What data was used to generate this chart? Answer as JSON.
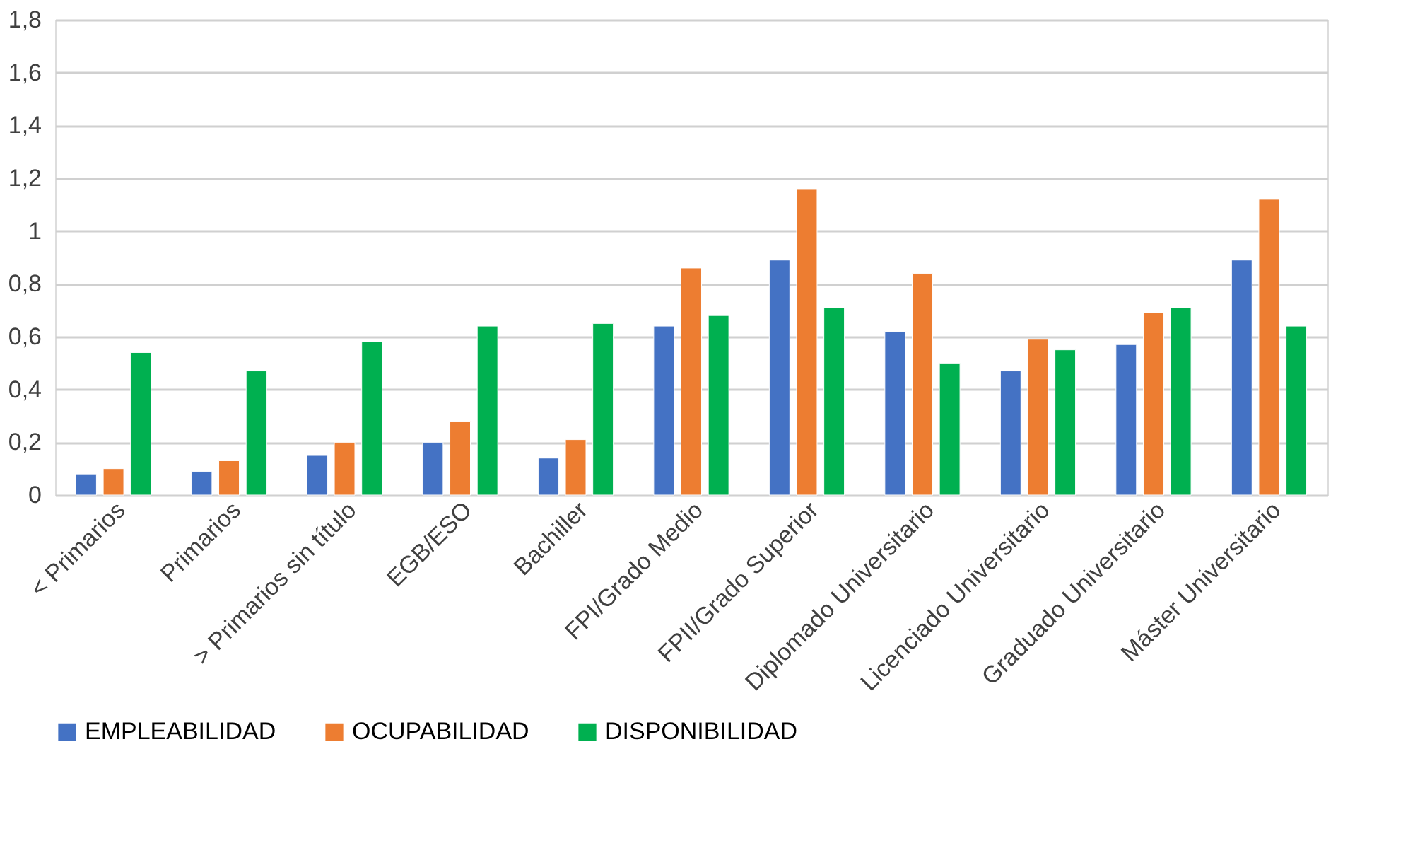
{
  "chart_data": {
    "type": "bar",
    "categories": [
      "< Primarios",
      "Primarios",
      "> Primarios sin título",
      "EGB/ESO",
      "Bachiller",
      "FPI/Grado Medio",
      "FPII/Grado Superior",
      "Diplomado Universitario",
      "Licenciado Universitario",
      "Graduado Universitario",
      "Máster Universitario"
    ],
    "series": [
      {
        "name": "EMPLEABILIDAD",
        "color": "#4472c4",
        "values": [
          0.08,
          0.09,
          0.15,
          0.2,
          0.14,
          0.64,
          0.89,
          0.62,
          0.47,
          0.57,
          0.89
        ]
      },
      {
        "name": "OCUPABILIDAD",
        "color": "#ed7d31",
        "values": [
          0.1,
          0.13,
          0.2,
          0.28,
          0.21,
          0.86,
          1.16,
          0.84,
          0.59,
          0.69,
          1.12
        ]
      },
      {
        "name": "DISPONIBILIDAD",
        "color": "#00b050",
        "values": [
          0.54,
          0.47,
          0.58,
          0.64,
          0.65,
          0.68,
          0.71,
          0.5,
          0.55,
          0.71,
          0.64
        ]
      }
    ],
    "ylim": [
      0,
      1.8
    ],
    "yticks": [
      0,
      {
        "value": 0.2,
        "label": "0,2"
      },
      {
        "value": 0.4,
        "label": "0,4"
      },
      {
        "value": 0.6,
        "label": "0,6"
      },
      {
        "value": 0.8,
        "label": "0,8"
      },
      1,
      {
        "value": 1.2,
        "label": "1,2"
      },
      {
        "value": 1.4,
        "label": "1,4"
      },
      {
        "value": 1.6,
        "label": "1,6"
      },
      {
        "value": 1.8,
        "label": "1,8"
      }
    ],
    "grid": "y",
    "legend": "bottom"
  }
}
